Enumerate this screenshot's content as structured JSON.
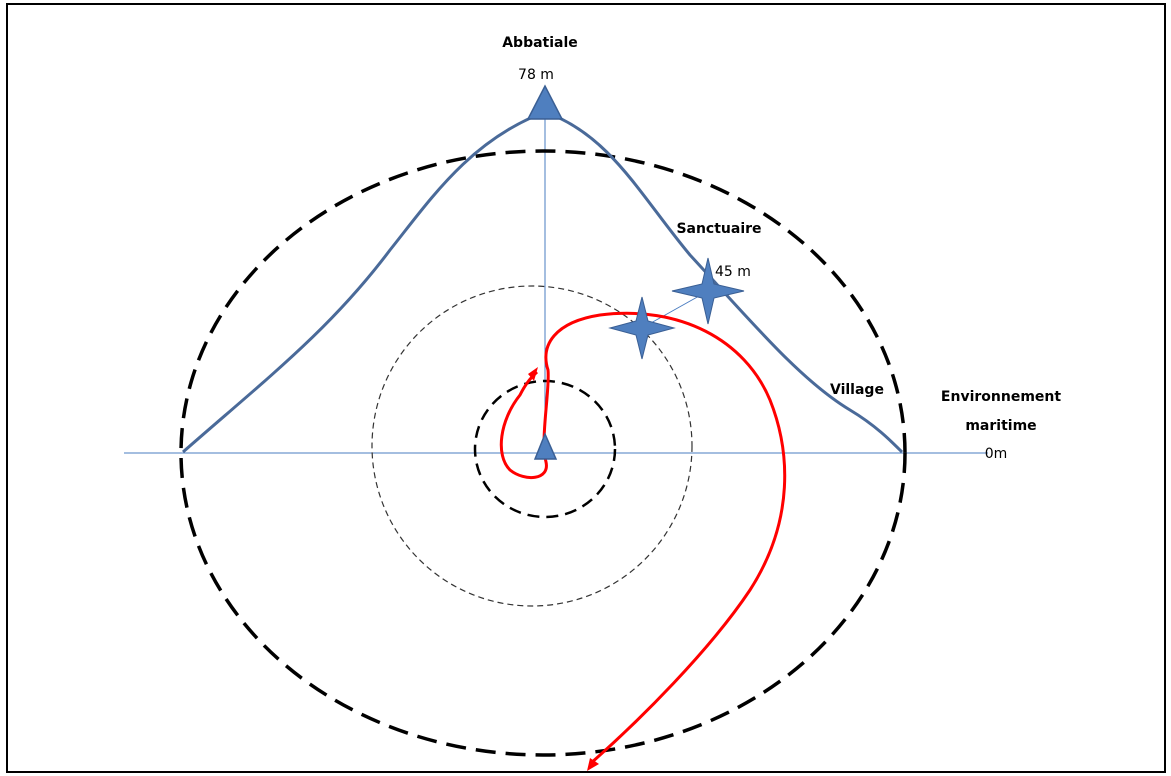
{
  "labels": {
    "abbatiale": "Abbatiale",
    "abbatiale_height": "78 m",
    "sanctuaire": "Sanctuaire",
    "sanctuaire_height": "45 m",
    "village": "Village",
    "environnement_line1": "Environnement",
    "environnement_line2": "maritime",
    "sea_level": "0m"
  },
  "colors": {
    "profile": "#4a6a99",
    "marker": "#4f7fbf",
    "path": "#ff0000",
    "circles": "#000000",
    "axis": "#4a7cc0"
  }
}
